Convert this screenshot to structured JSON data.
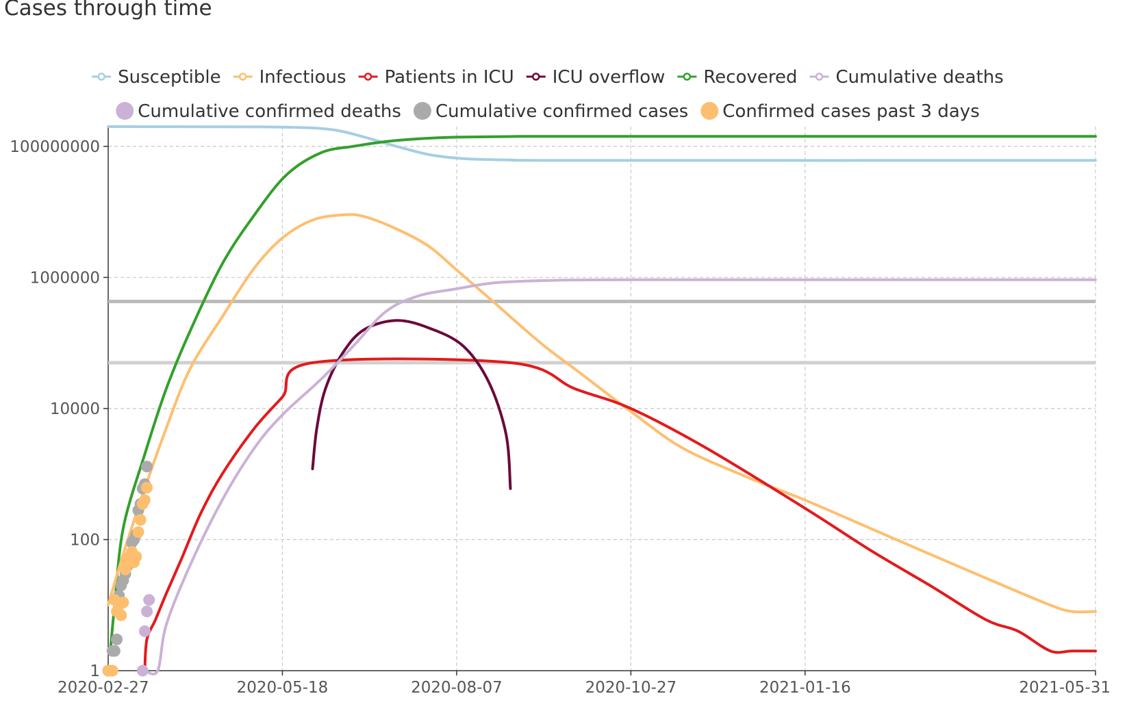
{
  "chart_data": {
    "title": "Cases through time",
    "type": "line",
    "x_scale": "time",
    "y_scale": "log",
    "xlim": [
      "2020-02-27",
      "2021-05-31"
    ],
    "ylim": [
      1,
      200000000
    ],
    "grid": true,
    "legend_placement": "top",
    "x_ticks": [
      "2020-02-27",
      "2020-05-18",
      "2020-08-07",
      "2020-10-27",
      "2021-01-16",
      "2021-05-31"
    ],
    "y_ticks": [
      {
        "value": 1,
        "label": "1"
      },
      {
        "value": 100,
        "label": "100"
      },
      {
        "value": 10000,
        "label": "10000"
      },
      {
        "value": 1000000,
        "label": "1000000"
      },
      {
        "value": 100000000,
        "label": "100000000"
      }
    ],
    "legend": {
      "row1": [
        {
          "name": "Susceptible",
          "color": "#a6cee3",
          "marker": "line"
        },
        {
          "name": "Infectious",
          "color": "#fdbf6f",
          "marker": "line"
        },
        {
          "name": "Patients in ICU",
          "color": "#e31a1c",
          "marker": "line"
        },
        {
          "name": "ICU overflow",
          "color": "#6b0a3a",
          "marker": "line"
        },
        {
          "name": "Recovered",
          "color": "#33a02c",
          "marker": "line"
        },
        {
          "name": "Cumulative deaths",
          "color": "#cab2d6",
          "marker": "line"
        }
      ],
      "row2": [
        {
          "name": "Cumulative confirmed deaths",
          "color": "#cab2d6",
          "marker": "dot"
        },
        {
          "name": "Cumulative confirmed cases",
          "color": "#aaaaaa",
          "marker": "dot"
        },
        {
          "name": "Confirmed cases past 3 days",
          "color": "#fdbf6f",
          "marker": "dot"
        }
      ]
    },
    "reference_lines": [
      {
        "y": 430000,
        "color": "#bbbbbb"
      },
      {
        "y": 50000,
        "color": "#d0d0d0"
      }
    ],
    "line_series": [
      {
        "name": "Susceptible",
        "color": "#a6cee3",
        "points": [
          [
            "2020-02-27",
            200000000
          ],
          [
            "2020-04-10",
            199000000
          ],
          [
            "2020-05-18",
            196000000
          ],
          [
            "2020-06-10",
            180000000
          ],
          [
            "2020-06-28",
            130000000
          ],
          [
            "2020-07-10",
            100000000
          ],
          [
            "2020-07-25",
            75000000
          ],
          [
            "2020-08-10",
            65000000
          ],
          [
            "2020-09-01",
            62000000
          ],
          [
            "2020-10-01",
            61000000
          ],
          [
            "2021-05-31",
            61000000
          ]
        ]
      },
      {
        "name": "Recovered",
        "color": "#33a02c",
        "points": [
          [
            "2020-02-28",
            2
          ],
          [
            "2020-03-01",
            10
          ],
          [
            "2020-03-05",
            150
          ],
          [
            "2020-03-15",
            2000
          ],
          [
            "2020-03-25",
            20000
          ],
          [
            "2020-04-05",
            150000
          ],
          [
            "2020-04-20",
            1600000
          ],
          [
            "2020-05-05",
            9000000
          ],
          [
            "2020-05-20",
            37000000
          ],
          [
            "2020-06-05",
            80000000
          ],
          [
            "2020-06-20",
            100000000
          ],
          [
            "2020-07-05",
            118000000
          ],
          [
            "2020-07-20",
            130000000
          ],
          [
            "2020-08-07",
            138000000
          ],
          [
            "2020-09-01",
            141000000
          ],
          [
            "2020-10-01",
            142000000
          ],
          [
            "2021-05-31",
            142000000
          ]
        ]
      },
      {
        "name": "Infectious",
        "color": "#fdbf6f",
        "points": [
          [
            "2020-02-27",
            10
          ],
          [
            "2020-03-05",
            60
          ],
          [
            "2020-03-15",
            600
          ],
          [
            "2020-03-25",
            5000
          ],
          [
            "2020-04-05",
            40000
          ],
          [
            "2020-04-20",
            250000
          ],
          [
            "2020-05-05",
            1400000
          ],
          [
            "2020-05-18",
            4000000
          ],
          [
            "2020-06-01",
            7500000
          ],
          [
            "2020-06-15",
            9000000
          ],
          [
            "2020-06-25",
            8500000
          ],
          [
            "2020-07-10",
            5500000
          ],
          [
            "2020-07-25",
            3000000
          ],
          [
            "2020-08-07",
            1300000
          ],
          [
            "2020-08-25",
            400000
          ],
          [
            "2020-09-15",
            100000
          ],
          [
            "2020-10-01",
            40000
          ],
          [
            "2020-10-27",
            9000
          ],
          [
            "2020-11-20",
            2500
          ],
          [
            "2020-12-20",
            900
          ],
          [
            "2021-01-16",
            400
          ],
          [
            "2021-02-15",
            150
          ],
          [
            "2021-03-15",
            60
          ],
          [
            "2021-04-15",
            22
          ],
          [
            "2021-05-10",
            10
          ],
          [
            "2021-05-20",
            8
          ],
          [
            "2021-05-31",
            8
          ]
        ]
      },
      {
        "name": "Patients in ICU",
        "color": "#e31a1c",
        "points": [
          [
            "2020-03-15",
            1
          ],
          [
            "2020-03-16",
            3
          ],
          [
            "2020-03-20",
            6
          ],
          [
            "2020-03-25",
            15
          ],
          [
            "2020-04-01",
            50
          ],
          [
            "2020-04-10",
            250
          ],
          [
            "2020-04-20",
            1000
          ],
          [
            "2020-05-05",
            5000
          ],
          [
            "2020-05-18",
            15000
          ],
          [
            "2020-06-01",
            50000
          ],
          [
            "2020-09-01",
            50000
          ],
          [
            "2020-10-01",
            20000
          ],
          [
            "2020-10-27",
            10000
          ],
          [
            "2020-12-01",
            2500
          ],
          [
            "2021-01-16",
            300
          ],
          [
            "2021-02-15",
            70
          ],
          [
            "2021-03-15",
            20
          ],
          [
            "2021-04-10",
            6
          ],
          [
            "2021-04-25",
            4
          ],
          [
            "2021-05-10",
            2
          ],
          [
            "2021-05-20",
            2
          ],
          [
            "2021-05-31",
            2
          ]
        ]
      },
      {
        "name": "ICU overflow",
        "color": "#6b0a3a",
        "points": [
          [
            "2020-06-01",
            1200
          ],
          [
            "2020-06-03",
            5000
          ],
          [
            "2020-06-07",
            20000
          ],
          [
            "2020-06-15",
            70000
          ],
          [
            "2020-06-25",
            160000
          ],
          [
            "2020-07-10",
            220000
          ],
          [
            "2020-07-25",
            170000
          ],
          [
            "2020-08-10",
            90000
          ],
          [
            "2020-08-22",
            25000
          ],
          [
            "2020-08-30",
            4000
          ],
          [
            "2020-09-01",
            600
          ]
        ]
      },
      {
        "name": "Cumulative deaths",
        "color": "#cab2d6",
        "points": [
          [
            "2020-03-15",
            1
          ],
          [
            "2020-03-21",
            1
          ],
          [
            "2020-03-25",
            5
          ],
          [
            "2020-04-05",
            40
          ],
          [
            "2020-04-20",
            400
          ],
          [
            "2020-05-05",
            2500
          ],
          [
            "2020-05-18",
            8000
          ],
          [
            "2020-06-05",
            28000
          ],
          [
            "2020-06-20",
            90000
          ],
          [
            "2020-07-05",
            300000
          ],
          [
            "2020-07-20",
            520000
          ],
          [
            "2020-08-07",
            670000
          ],
          [
            "2020-08-25",
            830000
          ],
          [
            "2020-09-20",
            900000
          ],
          [
            "2020-10-27",
            920000
          ],
          [
            "2021-05-31",
            920000
          ]
        ]
      }
    ],
    "scatter_series": [
      {
        "name": "Cumulative confirmed cases",
        "color": "#aaaaaa",
        "points": [
          [
            "2020-02-27",
            1
          ],
          [
            "2020-02-29",
            2
          ],
          [
            "2020-03-01",
            2
          ],
          [
            "2020-03-02",
            3
          ],
          [
            "2020-03-03",
            14
          ],
          [
            "2020-03-04",
            20
          ],
          [
            "2020-03-05",
            24
          ],
          [
            "2020-03-06",
            30
          ],
          [
            "2020-03-07",
            40
          ],
          [
            "2020-03-08",
            55
          ],
          [
            "2020-03-09",
            90
          ],
          [
            "2020-03-10",
            100
          ],
          [
            "2020-03-11",
            120
          ],
          [
            "2020-03-12",
            280
          ],
          [
            "2020-03-13",
            350
          ],
          [
            "2020-03-14",
            600
          ],
          [
            "2020-03-15",
            700
          ],
          [
            "2020-03-16",
            1300
          ]
        ]
      },
      {
        "name": "Confirmed cases past 3 days",
        "color": "#fdbf6f",
        "points": [
          [
            "2020-02-27",
            1
          ],
          [
            "2020-02-28",
            1
          ],
          [
            "2020-02-29",
            1
          ],
          [
            "2020-03-01",
            12
          ],
          [
            "2020-03-02",
            8
          ],
          [
            "2020-03-03",
            10
          ],
          [
            "2020-03-04",
            7
          ],
          [
            "2020-03-05",
            11
          ],
          [
            "2020-03-06",
            35
          ],
          [
            "2020-03-07",
            45
          ],
          [
            "2020-03-08",
            55
          ],
          [
            "2020-03-09",
            65
          ],
          [
            "2020-03-10",
            45
          ],
          [
            "2020-03-11",
            55
          ],
          [
            "2020-03-12",
            130
          ],
          [
            "2020-03-13",
            200
          ],
          [
            "2020-03-14",
            350
          ],
          [
            "2020-03-15",
            400
          ],
          [
            "2020-03-16",
            620
          ]
        ]
      },
      {
        "name": "Cumulative confirmed deaths",
        "color": "#cab2d6",
        "points": [
          [
            "2020-03-14",
            1
          ],
          [
            "2020-03-15",
            4
          ],
          [
            "2020-03-16",
            8
          ],
          [
            "2020-03-17",
            12
          ]
        ]
      }
    ]
  }
}
